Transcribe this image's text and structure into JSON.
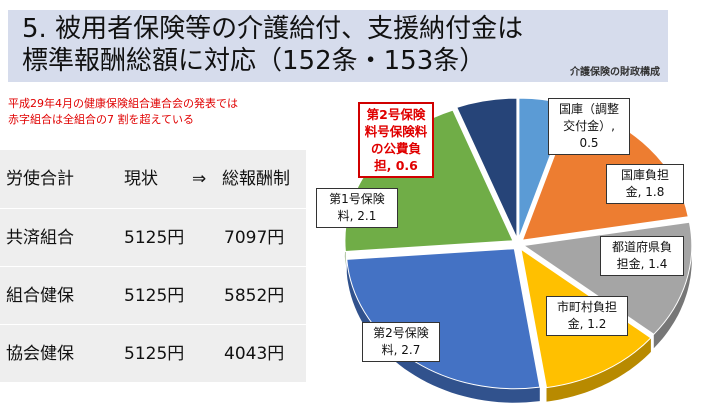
{
  "header": {
    "title_line1": "5. 被用者保険等の介護給付、支援納付金は",
    "title_line2": "標準報酬総額に対応（152条・153条）",
    "subtitle": "介護保険の財政構成"
  },
  "note": {
    "line1": "平成29年4月の健康保険組合連合会の発表では",
    "line2": "赤字組合は全組合の7 割を超えている"
  },
  "table": {
    "header": [
      "労使合計",
      "現状",
      "⇒",
      "総報酬制"
    ],
    "rows": [
      {
        "name": "共済組合",
        "current": "5125円",
        "proposed": "7097円"
      },
      {
        "name": "組合健保",
        "current": "5125円",
        "proposed": "5852円"
      },
      {
        "name": "協会健保",
        "current": "5125円",
        "proposed": "4043円"
      }
    ]
  },
  "chart_data": {
    "type": "pie",
    "categories": [
      "国庫（調整交付金）",
      "国庫負担金",
      "都道府県負担金",
      "市町村負担金",
      "第2号保険料",
      "第1号保険料",
      "第2号保険料号保険料の公費負担"
    ],
    "values": [
      0.5,
      1.8,
      1.4,
      1.2,
      2.7,
      2.1,
      0.6
    ],
    "colors": [
      "#5b9bd5",
      "#ed7d31",
      "#a5a5a5",
      "#ffc000",
      "#4472c4",
      "#70ad47",
      "#264478"
    ],
    "labels": [
      {
        "lines": [
          "国庫（調整",
          "交付金）,",
          "0.5"
        ],
        "highlight": false
      },
      {
        "lines": [
          "国庫負担",
          "金, 1.8"
        ],
        "highlight": false
      },
      {
        "lines": [
          "都道府県負",
          "担金, 1.4"
        ],
        "highlight": false
      },
      {
        "lines": [
          "市町村負担",
          "金, 1.2"
        ],
        "highlight": false
      },
      {
        "lines": [
          "第2号保険",
          "料, 2.7"
        ],
        "highlight": false
      },
      {
        "lines": [
          "第1号保険",
          "料, 2.1"
        ],
        "highlight": false
      },
      {
        "lines": [
          "第2号保険",
          "料号保険料",
          "の公費負",
          "担, 0.6"
        ],
        "highlight": true
      }
    ],
    "style": "3d-exploded"
  }
}
